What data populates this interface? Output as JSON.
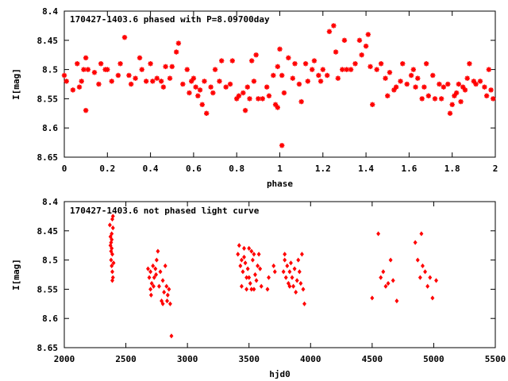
{
  "colors": {
    "points": "#ff0000",
    "axes": "#000000",
    "grid": "#a0a0a0",
    "background": "#ffffff"
  },
  "chart_data": [
    {
      "type": "scatter",
      "title": "170427-1403.6 phased with P=8.09700day",
      "xlabel": "phase",
      "ylabel": "I[mag]",
      "xlim": [
        0,
        2
      ],
      "ylim": [
        8.4,
        8.65
      ],
      "y_inverted": true,
      "grid": false,
      "xticks": [
        "0",
        "0.2",
        "0.4",
        "0.6",
        "0.8",
        "1",
        "1.2",
        "1.4",
        "1.6",
        "1.8",
        "2"
      ],
      "yticks": [
        "8.4",
        "8.45",
        "8.5",
        "8.55",
        "8.6",
        "8.65"
      ],
      "marker": "asterisk",
      "points": [
        [
          0.0,
          8.51
        ],
        [
          0.01,
          8.52
        ],
        [
          0.04,
          8.535
        ],
        [
          0.06,
          8.49
        ],
        [
          0.07,
          8.53
        ],
        [
          0.08,
          8.52
        ],
        [
          0.09,
          8.5
        ],
        [
          0.1,
          8.48
        ],
        [
          0.11,
          8.5
        ],
        [
          0.1,
          8.57
        ],
        [
          0.14,
          8.505
        ],
        [
          0.16,
          8.525
        ],
        [
          0.17,
          8.49
        ],
        [
          0.19,
          8.5
        ],
        [
          0.2,
          8.5
        ],
        [
          0.22,
          8.52
        ],
        [
          0.25,
          8.51
        ],
        [
          0.26,
          8.49
        ],
        [
          0.28,
          8.445
        ],
        [
          0.3,
          8.51
        ],
        [
          0.31,
          8.525
        ],
        [
          0.33,
          8.515
        ],
        [
          0.35,
          8.48
        ],
        [
          0.36,
          8.5
        ],
        [
          0.38,
          8.52
        ],
        [
          0.4,
          8.49
        ],
        [
          0.41,
          8.52
        ],
        [
          0.43,
          8.515
        ],
        [
          0.45,
          8.52
        ],
        [
          0.46,
          8.53
        ],
        [
          0.47,
          8.495
        ],
        [
          0.49,
          8.515
        ],
        [
          0.5,
          8.495
        ],
        [
          0.52,
          8.47
        ],
        [
          0.53,
          8.455
        ],
        [
          0.55,
          8.525
        ],
        [
          0.57,
          8.5
        ],
        [
          0.58,
          8.54
        ],
        [
          0.59,
          8.52
        ],
        [
          0.6,
          8.515
        ],
        [
          0.61,
          8.53
        ],
        [
          0.62,
          8.545
        ],
        [
          0.63,
          8.535
        ],
        [
          0.64,
          8.56
        ],
        [
          0.65,
          8.52
        ],
        [
          0.66,
          8.575
        ],
        [
          0.68,
          8.53
        ],
        [
          0.69,
          8.54
        ],
        [
          0.7,
          8.5
        ],
        [
          0.72,
          8.52
        ],
        [
          0.73,
          8.485
        ],
        [
          0.75,
          8.53
        ],
        [
          0.77,
          8.525
        ],
        [
          0.78,
          8.485
        ],
        [
          0.8,
          8.55
        ],
        [
          0.81,
          8.545
        ],
        [
          0.83,
          8.54
        ],
        [
          0.84,
          8.57
        ],
        [
          0.85,
          8.53
        ],
        [
          0.86,
          8.55
        ],
        [
          0.87,
          8.485
        ],
        [
          0.88,
          8.52
        ],
        [
          0.89,
          8.475
        ],
        [
          0.9,
          8.55
        ],
        [
          0.92,
          8.55
        ],
        [
          0.94,
          8.53
        ],
        [
          0.95,
          8.545
        ],
        [
          0.97,
          8.51
        ],
        [
          0.98,
          8.56
        ],
        [
          0.99,
          8.565
        ],
        [
          0.99,
          8.495
        ],
        [
          1.0,
          8.465
        ],
        [
          1.01,
          8.51
        ],
        [
          1.02,
          8.54
        ],
        [
          1.01,
          8.63
        ],
        [
          1.04,
          8.48
        ],
        [
          1.06,
          8.515
        ],
        [
          1.07,
          8.49
        ],
        [
          1.09,
          8.525
        ],
        [
          1.1,
          8.555
        ],
        [
          1.12,
          8.49
        ],
        [
          1.13,
          8.52
        ],
        [
          1.15,
          8.5
        ],
        [
          1.16,
          8.485
        ],
        [
          1.18,
          8.51
        ],
        [
          1.19,
          8.52
        ],
        [
          1.2,
          8.5
        ],
        [
          1.22,
          8.51
        ],
        [
          1.23,
          8.435
        ],
        [
          1.25,
          8.425
        ],
        [
          1.26,
          8.47
        ],
        [
          1.27,
          8.515
        ],
        [
          1.29,
          8.5
        ],
        [
          1.3,
          8.45
        ],
        [
          1.31,
          8.5
        ],
        [
          1.33,
          8.5
        ],
        [
          1.35,
          8.49
        ],
        [
          1.37,
          8.45
        ],
        [
          1.38,
          8.475
        ],
        [
          1.4,
          8.46
        ],
        [
          1.41,
          8.44
        ],
        [
          1.42,
          8.495
        ],
        [
          1.43,
          8.56
        ],
        [
          1.45,
          8.5
        ],
        [
          1.47,
          8.49
        ],
        [
          1.49,
          8.515
        ],
        [
          1.5,
          8.545
        ],
        [
          1.51,
          8.505
        ],
        [
          1.53,
          8.535
        ],
        [
          1.54,
          8.53
        ],
        [
          1.56,
          8.52
        ],
        [
          1.57,
          8.49
        ],
        [
          1.59,
          8.525
        ],
        [
          1.61,
          8.51
        ],
        [
          1.62,
          8.5
        ],
        [
          1.63,
          8.53
        ],
        [
          1.64,
          8.515
        ],
        [
          1.66,
          8.55
        ],
        [
          1.67,
          8.53
        ],
        [
          1.68,
          8.49
        ],
        [
          1.69,
          8.545
        ],
        [
          1.71,
          8.51
        ],
        [
          1.72,
          8.55
        ],
        [
          1.74,
          8.525
        ],
        [
          1.75,
          8.55
        ],
        [
          1.76,
          8.53
        ],
        [
          1.78,
          8.525
        ],
        [
          1.79,
          8.575
        ],
        [
          1.8,
          8.56
        ],
        [
          1.81,
          8.545
        ],
        [
          1.82,
          8.54
        ],
        [
          1.83,
          8.525
        ],
        [
          1.84,
          8.555
        ],
        [
          1.85,
          8.53
        ],
        [
          1.86,
          8.535
        ],
        [
          1.87,
          8.515
        ],
        [
          1.88,
          8.49
        ],
        [
          1.9,
          8.52
        ],
        [
          1.91,
          8.525
        ],
        [
          1.93,
          8.52
        ],
        [
          1.95,
          8.53
        ],
        [
          1.96,
          8.545
        ],
        [
          1.97,
          8.5
        ],
        [
          1.98,
          8.535
        ],
        [
          1.99,
          8.55
        ]
      ]
    },
    {
      "type": "scatter",
      "title": "170427-1403.6 not phased light curve",
      "xlabel": "hjd0",
      "ylabel": "I[mag]",
      "xlim": [
        2000,
        5500
      ],
      "ylim": [
        8.4,
        8.65
      ],
      "y_inverted": true,
      "grid": false,
      "xticks": [
        "2000",
        "2500",
        "3000",
        "3500",
        "4000",
        "4500",
        "5000",
        "5500"
      ],
      "yticks": [
        "8.4",
        "8.45",
        "8.5",
        "8.55",
        "8.6",
        "8.65"
      ],
      "marker": "diamond",
      "points": [
        [
          2370,
          8.44
        ],
        [
          2375,
          8.46
        ],
        [
          2380,
          8.47
        ],
        [
          2385,
          8.48
        ],
        [
          2390,
          8.49
        ],
        [
          2380,
          8.5
        ],
        [
          2385,
          8.51
        ],
        [
          2390,
          8.52
        ],
        [
          2395,
          8.53
        ],
        [
          2375,
          8.475
        ],
        [
          2390,
          8.43
        ],
        [
          2395,
          8.445
        ],
        [
          2385,
          8.455
        ],
        [
          2380,
          8.485
        ],
        [
          2400,
          8.505
        ],
        [
          2390,
          8.535
        ],
        [
          2395,
          8.425
        ],
        [
          2385,
          8.465
        ],
        [
          2680,
          8.515
        ],
        [
          2690,
          8.53
        ],
        [
          2700,
          8.55
        ],
        [
          2700,
          8.52
        ],
        [
          2710,
          8.54
        ],
        [
          2720,
          8.51
        ],
        [
          2730,
          8.53
        ],
        [
          2740,
          8.515
        ],
        [
          2750,
          8.5
        ],
        [
          2760,
          8.485
        ],
        [
          2770,
          8.545
        ],
        [
          2780,
          8.52
        ],
        [
          2790,
          8.57
        ],
        [
          2800,
          8.535
        ],
        [
          2810,
          8.555
        ],
        [
          2820,
          8.51
        ],
        [
          2830,
          8.545
        ],
        [
          2840,
          8.56
        ],
        [
          2850,
          8.55
        ],
        [
          2860,
          8.575
        ],
        [
          2870,
          8.63
        ],
        [
          2745,
          8.525
        ],
        [
          2725,
          8.545
        ],
        [
          2705,
          8.56
        ],
        [
          2800,
          8.575
        ],
        [
          2835,
          8.57
        ],
        [
          3410,
          8.49
        ],
        [
          3420,
          8.475
        ],
        [
          3430,
          8.51
        ],
        [
          3440,
          8.5
        ],
        [
          3450,
          8.52
        ],
        [
          3460,
          8.495
        ],
        [
          3470,
          8.505
        ],
        [
          3480,
          8.53
        ],
        [
          3490,
          8.515
        ],
        [
          3500,
          8.48
        ],
        [
          3510,
          8.54
        ],
        [
          3520,
          8.55
        ],
        [
          3530,
          8.5
        ],
        [
          3540,
          8.49
        ],
        [
          3550,
          8.525
        ],
        [
          3560,
          8.535
        ],
        [
          3570,
          8.51
        ],
        [
          3580,
          8.49
        ],
        [
          3590,
          8.515
        ],
        [
          3600,
          8.545
        ],
        [
          3650,
          8.55
        ],
        [
          3660,
          8.53
        ],
        [
          3700,
          8.51
        ],
        [
          3710,
          8.52
        ],
        [
          3440,
          8.545
        ],
        [
          3480,
          8.55
        ],
        [
          3520,
          8.485
        ],
        [
          3460,
          8.48
        ],
        [
          3500,
          8.53
        ],
        [
          3540,
          8.55
        ],
        [
          3780,
          8.52
        ],
        [
          3790,
          8.5
        ],
        [
          3800,
          8.53
        ],
        [
          3810,
          8.51
        ],
        [
          3820,
          8.54
        ],
        [
          3830,
          8.52
        ],
        [
          3840,
          8.505
        ],
        [
          3850,
          8.53
        ],
        [
          3860,
          8.545
        ],
        [
          3870,
          8.515
        ],
        [
          3880,
          8.555
        ],
        [
          3890,
          8.535
        ],
        [
          3900,
          8.5
        ],
        [
          3910,
          8.52
        ],
        [
          3920,
          8.54
        ],
        [
          3930,
          8.49
        ],
        [
          3940,
          8.55
        ],
        [
          3950,
          8.575
        ],
        [
          3790,
          8.49
        ],
        [
          3830,
          8.545
        ],
        [
          4500,
          8.565
        ],
        [
          4550,
          8.455
        ],
        [
          4570,
          8.53
        ],
        [
          4590,
          8.52
        ],
        [
          4610,
          8.545
        ],
        [
          4630,
          8.54
        ],
        [
          4650,
          8.5
        ],
        [
          4670,
          8.535
        ],
        [
          4700,
          8.57
        ],
        [
          4850,
          8.47
        ],
        [
          4870,
          8.5
        ],
        [
          4890,
          8.53
        ],
        [
          4900,
          8.455
        ],
        [
          4910,
          8.51
        ],
        [
          4930,
          8.52
        ],
        [
          4950,
          8.545
        ],
        [
          4970,
          8.53
        ],
        [
          4990,
          8.565
        ],
        [
          5020,
          8.535
        ]
      ]
    }
  ]
}
